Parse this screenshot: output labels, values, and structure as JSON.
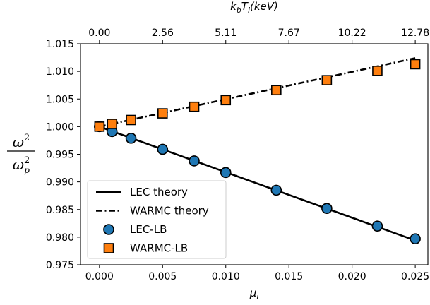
{
  "chart_data": {
    "type": "line",
    "x_label_main": "μ",
    "x_label_sub": "i",
    "top_label_main": "k",
    "top_label_sub1": "b",
    "top_label_mid": "T",
    "top_label_sub2": "i",
    "top_label_tail": "(keV)",
    "y_label_num": "ω",
    "y_label_num_sup": "2",
    "y_label_den": "ω",
    "y_label_den_sub": "p",
    "y_label_den_sup": "2",
    "xlim": [
      -0.0015,
      0.026
    ],
    "ylim": [
      0.975,
      1.015
    ],
    "x_ticks": [
      0.0,
      0.005,
      0.01,
      0.015,
      0.02,
      0.025
    ],
    "x_tick_labels": [
      "0.000",
      "0.005",
      "0.010",
      "0.015",
      "0.020",
      "0.025"
    ],
    "y_ticks": [
      0.975,
      0.98,
      0.985,
      0.99,
      0.995,
      1.0,
      1.005,
      1.01,
      1.015
    ],
    "y_tick_labels": [
      "0.975",
      "0.980",
      "0.985",
      "0.990",
      "0.995",
      "1.000",
      "1.005",
      "1.010",
      "1.015"
    ],
    "top_ticks_mu": [
      0.0,
      0.005,
      0.01,
      0.015,
      0.02,
      0.025
    ],
    "top_tick_labels": [
      "0.00",
      "2.56",
      "5.11",
      "7.67",
      "10.22",
      "12.78"
    ],
    "grid": false,
    "legend_position": "lower-left",
    "series": [
      {
        "name": "LEC theory",
        "kind": "line",
        "style": "solid",
        "color": "#000000",
        "x": [
          0.0,
          0.025
        ],
        "y": [
          1.0,
          0.9794
        ]
      },
      {
        "name": "WARMC theory",
        "kind": "line",
        "style": "dashdot",
        "color": "#000000",
        "x": [
          0.0,
          0.025
        ],
        "y": [
          1.0,
          1.0124
        ]
      },
      {
        "name": "LEC-LB",
        "kind": "scatter",
        "marker": "circle",
        "color": "#1f77b4",
        "x": [
          0.0,
          0.001,
          0.0025,
          0.005,
          0.0075,
          0.01,
          0.014,
          0.018,
          0.022,
          0.025
        ],
        "y": [
          1.0,
          0.9991,
          0.9979,
          0.9959,
          0.9938,
          0.9917,
          0.9885,
          0.9852,
          0.982,
          0.9797
        ]
      },
      {
        "name": "WARMC-LB",
        "kind": "scatter",
        "marker": "square",
        "color": "#ff7f0e",
        "x": [
          0.0,
          0.001,
          0.0025,
          0.005,
          0.0075,
          0.01,
          0.014,
          0.018,
          0.022,
          0.025
        ],
        "y": [
          1.0,
          1.0005,
          1.0012,
          1.0024,
          1.0036,
          1.0048,
          1.0066,
          1.0084,
          1.0101,
          1.0113
        ]
      }
    ]
  }
}
